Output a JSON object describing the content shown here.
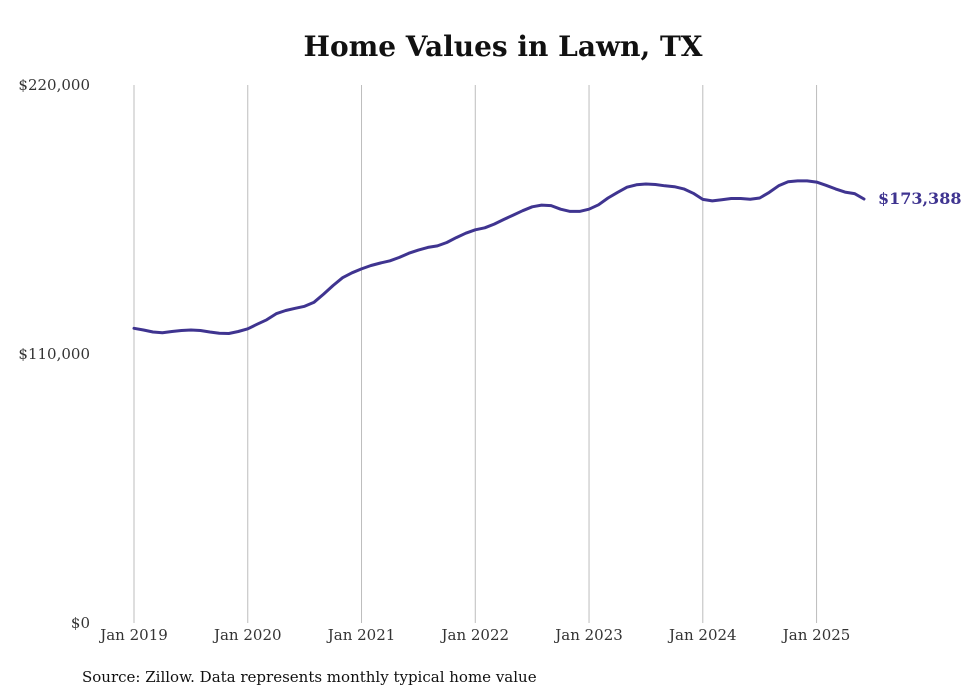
{
  "chart_data": {
    "type": "line",
    "title": "Home Values in Lawn, TX",
    "xlabel": "",
    "ylabel": "",
    "ylim": [
      0,
      220000
    ],
    "y_ticks": [
      {
        "value": 0,
        "label": "$0"
      },
      {
        "value": 110000,
        "label": "$110,000"
      },
      {
        "value": 220000,
        "label": "$220,000"
      }
    ],
    "x_ticks": [
      "Jan 2019",
      "Jan 2020",
      "Jan 2021",
      "Jan 2022",
      "Jan 2023",
      "Jan 2024",
      "Jan 2025"
    ],
    "x_start": "Jan 2019",
    "grid": "vertical",
    "line_color": "#3f3490",
    "end_label": "$173,388",
    "values": [
      120500,
      119800,
      119000,
      118700,
      119200,
      119600,
      119800,
      119600,
      119000,
      118500,
      118400,
      119200,
      120300,
      122200,
      124000,
      126500,
      127800,
      128700,
      129500,
      131200,
      134500,
      138000,
      141200,
      143200,
      144800,
      146200,
      147200,
      148100,
      149500,
      151200,
      152500,
      153600,
      154200,
      155600,
      157600,
      159400,
      160800,
      161600,
      163100,
      165000,
      166800,
      168600,
      170200,
      170900,
      170700,
      169200,
      168300,
      168300,
      169200,
      171000,
      173800,
      176100,
      178200,
      179200,
      179500,
      179300,
      178800,
      178400,
      177500,
      175700,
      173200,
      172600,
      173100,
      173600,
      173600,
      173300,
      173800,
      176100,
      178800,
      180400,
      180800,
      180800,
      180300,
      179000,
      177500,
      176200,
      175600,
      173388
    ]
  },
  "source": "Source: Zillow. Data represents monthly typical home value"
}
